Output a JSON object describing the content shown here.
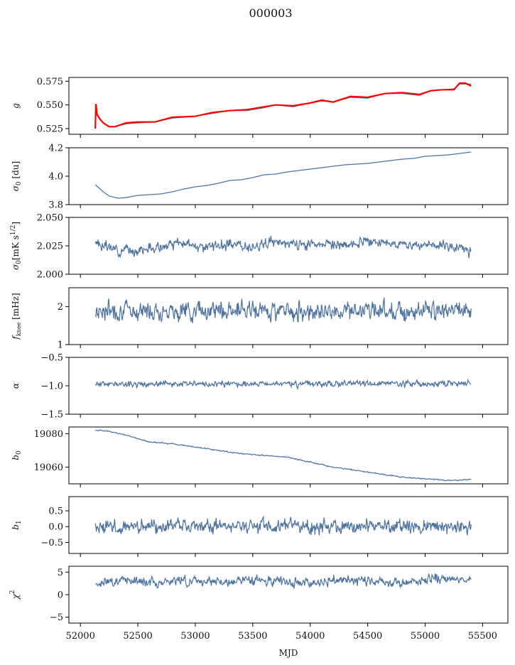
{
  "figure": {
    "title": "000003"
  },
  "chart_data": {
    "type": "line",
    "x_axis": {
      "label": "MJD",
      "range": [
        51900,
        55720
      ],
      "ticks": [
        52000,
        52500,
        53000,
        53500,
        54000,
        54500,
        55000,
        55500
      ]
    },
    "mjd_span": [
      52130,
      55400
    ],
    "panels": [
      {
        "id": "g",
        "ylabel_html": "<tspan font-style='italic'>g</tspan>",
        "ylim": [
          0.519,
          0.579
        ],
        "ticks": [
          0.525,
          0.55,
          0.575
        ],
        "tick_labels": [
          "0.525",
          "0.550",
          "0.575"
        ],
        "series": [
          {
            "name": "",
            "color": "#4c72a0",
            "points": [
              [
                52130,
                0.543
              ],
              [
                52160,
                0.536
              ],
              [
                52200,
                0.531
              ],
              [
                52250,
                0.527
              ],
              [
                52300,
                0.527
              ],
              [
                52400,
                0.53
              ],
              [
                52500,
                0.531
              ],
              [
                52650,
                0.532
              ],
              [
                52800,
                0.536
              ],
              [
                53000,
                0.538
              ],
              [
                53150,
                0.541
              ],
              [
                53300,
                0.544
              ],
              [
                53450,
                0.544
              ],
              [
                53600,
                0.547
              ],
              [
                53700,
                0.55
              ],
              [
                53850,
                0.548
              ],
              [
                54000,
                0.552
              ],
              [
                54100,
                0.554
              ],
              [
                54200,
                0.553
              ],
              [
                54350,
                0.558
              ],
              [
                54500,
                0.557
              ],
              [
                54650,
                0.562
              ],
              [
                54800,
                0.562
              ],
              [
                54950,
                0.56
              ],
              [
                55050,
                0.565
              ],
              [
                55150,
                0.566
              ],
              [
                55250,
                0.567
              ],
              [
                55300,
                0.572
              ],
              [
                55400,
                0.572
              ]
            ]
          },
          {
            "name": "",
            "color": "#ff0000",
            "points": [
              [
                52130,
                0.525
              ],
              [
                52135,
                0.551
              ],
              [
                52145,
                0.54
              ],
              [
                52170,
                0.535
              ],
              [
                52200,
                0.531
              ],
              [
                52250,
                0.527
              ],
              [
                52300,
                0.527
              ],
              [
                52400,
                0.531
              ],
              [
                52500,
                0.532
              ],
              [
                52650,
                0.532
              ],
              [
                52800,
                0.537
              ],
              [
                53000,
                0.538
              ],
              [
                53150,
                0.542
              ],
              [
                53300,
                0.544
              ],
              [
                53450,
                0.545
              ],
              [
                53600,
                0.548
              ],
              [
                53700,
                0.55
              ],
              [
                53850,
                0.549
              ],
              [
                54000,
                0.552
              ],
              [
                54100,
                0.555
              ],
              [
                54200,
                0.553
              ],
              [
                54350,
                0.559
              ],
              [
                54500,
                0.558
              ],
              [
                54650,
                0.562
              ],
              [
                54800,
                0.563
              ],
              [
                54950,
                0.561
              ],
              [
                55050,
                0.565
              ],
              [
                55150,
                0.566
              ],
              [
                55250,
                0.566
              ],
              [
                55300,
                0.573
              ],
              [
                55350,
                0.573
              ],
              [
                55400,
                0.57
              ]
            ]
          }
        ]
      },
      {
        "id": "sigma0",
        "ylabel_html": "<tspan font-style='italic'>σ</tspan><tspan font-size='9' dy='3'>0</tspan><tspan dy='-3'> [du]</tspan>",
        "ylim": [
          3.8,
          4.2
        ],
        "ticks": [
          3.8,
          4.0,
          4.2
        ],
        "tick_labels": [
          "3.8",
          "4.0",
          "4.2"
        ],
        "series": [
          {
            "name": "",
            "color": "#4c72a0",
            "points": [
              [
                52130,
                3.94
              ],
              [
                52200,
                3.89
              ],
              [
                52250,
                3.86
              ],
              [
                52330,
                3.845
              ],
              [
                52400,
                3.85
              ],
              [
                52500,
                3.865
              ],
              [
                52600,
                3.87
              ],
              [
                52700,
                3.875
              ],
              [
                52800,
                3.89
              ],
              [
                52900,
                3.91
              ],
              [
                53000,
                3.925
              ],
              [
                53100,
                3.935
              ],
              [
                53200,
                3.95
              ],
              [
                53300,
                3.97
              ],
              [
                53400,
                3.975
              ],
              [
                53500,
                3.99
              ],
              [
                53600,
                4.01
              ],
              [
                53700,
                4.015
              ],
              [
                53800,
                4.03
              ],
              [
                53900,
                4.04
              ],
              [
                54000,
                4.05
              ],
              [
                54100,
                4.06
              ],
              [
                54200,
                4.07
              ],
              [
                54300,
                4.08
              ],
              [
                54400,
                4.085
              ],
              [
                54500,
                4.09
              ],
              [
                54600,
                4.1
              ],
              [
                54700,
                4.11
              ],
              [
                54800,
                4.12
              ],
              [
                54900,
                4.125
              ],
              [
                55000,
                4.14
              ],
              [
                55100,
                4.145
              ],
              [
                55200,
                4.15
              ],
              [
                55300,
                4.16
              ],
              [
                55400,
                4.17
              ]
            ]
          }
        ]
      },
      {
        "id": "sigma0_ts",
        "ylabel_html": "<tspan font-style='italic'>σ</tspan><tspan font-size='9' dy='3'>0</tspan><tspan dy='-3'>[mK s</tspan><tspan font-size='9' dy='-5'>1/2</tspan><tspan dy='5'>]</tspan>",
        "ylim": [
          2.0,
          2.05
        ],
        "ticks": [
          2.0,
          2.025,
          2.05
        ],
        "tick_labels": [
          "2.000",
          "2.025",
          "2.050"
        ],
        "series": [
          {
            "name": "",
            "color": "#4c72a0",
            "noise": 0.004,
            "seed": 3,
            "points": [
              [
                52130,
                2.027
              ],
              [
                52300,
                2.022
              ],
              [
                52500,
                2.021
              ],
              [
                52700,
                2.024
              ],
              [
                52900,
                2.027
              ],
              [
                53100,
                2.024
              ],
              [
                53300,
                2.026
              ],
              [
                53500,
                2.025
              ],
              [
                53700,
                2.028
              ],
              [
                53900,
                2.026
              ],
              [
                54100,
                2.027
              ],
              [
                54300,
                2.025
              ],
              [
                54500,
                2.028
              ],
              [
                54700,
                2.027
              ],
              [
                54900,
                2.026
              ],
              [
                55100,
                2.026
              ],
              [
                55300,
                2.023
              ],
              [
                55400,
                2.021
              ]
            ]
          }
        ]
      },
      {
        "id": "fknee",
        "ylabel_html": "<tspan font-style='italic'>f</tspan><tspan font-size='8' dy='3'>knee</tspan><tspan dy='-3'> [mHz]</tspan>",
        "ylim": [
          1.0,
          2.5
        ],
        "ticks": [
          1,
          2
        ],
        "tick_labels": [
          "1",
          "2"
        ],
        "series": [
          {
            "name": "",
            "color": "#4c72a0",
            "noise": 0.22,
            "seed": 7,
            "points": [
              [
                52130,
                1.9
              ],
              [
                55400,
                1.9
              ]
            ]
          }
        ]
      },
      {
        "id": "alpha",
        "ylabel_html": "<tspan font-style='italic'>α</tspan>",
        "ylim": [
          -1.5,
          -0.5
        ],
        "ticks": [
          -1.5,
          -1.0,
          -0.5
        ],
        "tick_labels": [
          "−1.5",
          "−1.0",
          "−0.5"
        ],
        "series": [
          {
            "name": "",
            "color": "#4c72a0",
            "noise": 0.045,
            "seed": 11,
            "points": [
              [
                52130,
                -0.97
              ],
              [
                55400,
                -0.96
              ]
            ]
          }
        ]
      },
      {
        "id": "b0",
        "ylabel_html": "<tspan font-style='italic'>b</tspan><tspan font-size='9' dy='3'>0</tspan>",
        "ylim": [
          19050,
          19084
        ],
        "ticks": [
          19060,
          19080
        ],
        "tick_labels": [
          "19060",
          "19080"
        ],
        "series": [
          {
            "name": "",
            "color": "#4c72a0",
            "noise": 0.3,
            "seed": 5,
            "points": [
              [
                52130,
                19082
              ],
              [
                52250,
                19081.5
              ],
              [
                52400,
                19079
              ],
              [
                52600,
                19075
              ],
              [
                52800,
                19074
              ],
              [
                53000,
                19072
              ],
              [
                53200,
                19070
              ],
              [
                53400,
                19068
              ],
              [
                53600,
                19067
              ],
              [
                53800,
                19066
              ],
              [
                54000,
                19063
              ],
              [
                54200,
                19060
              ],
              [
                54400,
                19058
              ],
              [
                54600,
                19056
              ],
              [
                54800,
                19054
              ],
              [
                55000,
                19053
              ],
              [
                55200,
                19052
              ],
              [
                55400,
                19052.5
              ]
            ]
          }
        ]
      },
      {
        "id": "b1",
        "ylabel_html": "<tspan font-style='italic'>b</tspan><tspan font-size='9' dy='3'>1</tspan>",
        "ylim": [
          -0.85,
          0.95
        ],
        "ticks": [
          -0.5,
          0.0,
          0.5
        ],
        "tick_labels": [
          "−0.5",
          "0.0",
          "0.5"
        ],
        "series": [
          {
            "name": "",
            "color": "#4c72a0",
            "noise": 0.2,
            "seed": 13,
            "points": [
              [
                52130,
                0.0
              ],
              [
                55400,
                0.0
              ]
            ]
          }
        ]
      },
      {
        "id": "chi2",
        "ylabel_html": "<tspan font-style='italic'>χ</tspan><tspan font-size='9' dy='-6'>2</tspan>",
        "ylim": [
          -6.3,
          6.3
        ],
        "ticks": [
          -5,
          0,
          5
        ],
        "tick_labels": [
          "−5",
          "0",
          "5"
        ],
        "series": [
          {
            "name": "",
            "color": "#4c72a0",
            "noise": 0.9,
            "seed": 17,
            "points": [
              [
                52130,
                2.5
              ],
              [
                52400,
                3.3
              ],
              [
                52700,
                2.8
              ],
              [
                53000,
                3.2
              ],
              [
                53300,
                2.7
              ],
              [
                53600,
                3.3
              ],
              [
                53900,
                2.6
              ],
              [
                54200,
                3.2
              ],
              [
                54500,
                3.1
              ],
              [
                54800,
                2.6
              ],
              [
                55100,
                3.4
              ],
              [
                55400,
                3.4
              ]
            ]
          }
        ]
      }
    ]
  }
}
